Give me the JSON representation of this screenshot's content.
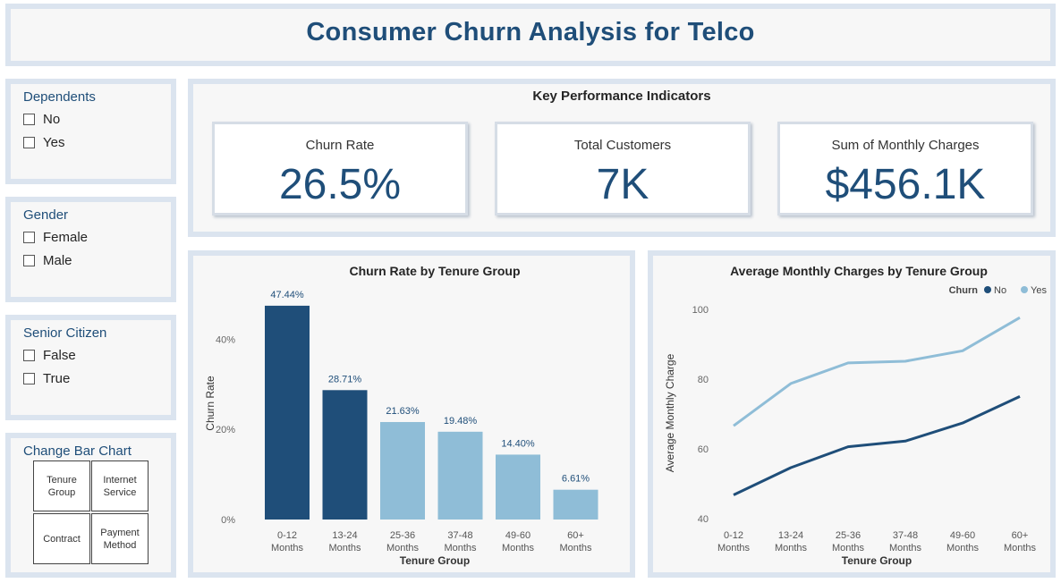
{
  "title": "Consumer Churn Analysis for Telco",
  "slicers": [
    {
      "title": "Dependents",
      "options": [
        "No",
        "Yes"
      ]
    },
    {
      "title": "Gender",
      "options": [
        "Female",
        "Male"
      ]
    },
    {
      "title": "Senior Citizen",
      "options": [
        "False",
        "True"
      ]
    }
  ],
  "change_chart": {
    "title": "Change Bar Chart",
    "buttons": [
      "Tenure Group",
      "Internet Service",
      "Contract",
      "Payment Method"
    ]
  },
  "kpi": {
    "heading": "Key Performance Indicators",
    "cards": [
      {
        "label": "Churn Rate",
        "value": "26.5%"
      },
      {
        "label": "Total Customers",
        "value": "7K"
      },
      {
        "label": "Sum of Monthly Charges",
        "value": "$456.1K"
      }
    ]
  },
  "colors": {
    "title": "#1f4e79",
    "dark": "#1f4e79",
    "light": "#8fbdd7"
  },
  "chart_data": [
    {
      "type": "bar",
      "title": "Churn Rate by Tenure Group",
      "xlabel": "Tenure Group",
      "ylabel": "Churn Rate",
      "categories": [
        "0-12 Months",
        "13-24 Months",
        "25-36 Months",
        "37-48 Months",
        "49-60 Months",
        "60+ Months"
      ],
      "values": [
        47.44,
        28.71,
        21.63,
        19.48,
        14.4,
        6.61
      ],
      "value_labels": [
        "47.44%",
        "28.71%",
        "21.63%",
        "19.48%",
        "14.40%",
        "6.61%"
      ],
      "highlighted": [
        true,
        true,
        false,
        false,
        false,
        false
      ],
      "yticks": [
        0,
        20,
        40
      ],
      "ytick_labels": [
        "0%",
        "20%",
        "40%"
      ],
      "ylim": [
        0,
        50
      ]
    },
    {
      "type": "line",
      "title": "Average Monthly Charges by Tenure Group",
      "xlabel": "Tenure Group",
      "ylabel": "Average Monthly Charge",
      "legend_title": "Churn",
      "legend_position": "top-right",
      "categories": [
        "0-12 Months",
        "13-24 Months",
        "25-36 Months",
        "37-48 Months",
        "49-60 Months",
        "60+ Months"
      ],
      "series": [
        {
          "name": "No",
          "values": [
            46.8,
            54.6,
            60.6,
            62.2,
            67.4,
            75.0
          ]
        },
        {
          "name": "Yes",
          "values": [
            66.6,
            78.7,
            84.6,
            85.1,
            88.1,
            97.6
          ]
        }
      ],
      "yticks": [
        40,
        60,
        80,
        100
      ],
      "ylim": [
        40,
        102
      ]
    }
  ]
}
